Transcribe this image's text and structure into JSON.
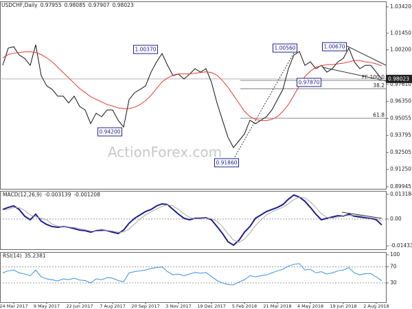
{
  "chart_data": [
    {
      "type": "line",
      "title": "USDCHF,Daily",
      "ohlc": [
        0.97955,
        0.98085,
        0.97907,
        0.98023
      ],
      "watermark": "ActionForex.com",
      "series": [
        {
          "color": "#111111",
          "values": [
            0.9904,
            1.0033,
            1.0043,
            0.9981,
            0.9956,
            0.9904,
            1.0058,
            0.9827,
            0.975,
            0.9724,
            0.9673,
            0.9673,
            0.9622,
            0.9673,
            0.9596,
            0.957,
            0.9467,
            0.9545,
            0.9519,
            0.957,
            0.957,
            0.9493,
            0.9442,
            0.9647,
            0.9699,
            0.9724,
            0.975,
            0.9853,
            0.993,
            0.9992,
            0.9904,
            0.9827,
            0.9838,
            0.9802,
            0.9838,
            0.9879,
            0.9853,
            0.9879,
            0.9776,
            0.9622,
            0.9493,
            0.9365,
            0.9288,
            0.9339,
            0.939,
            0.9493,
            0.9467,
            0.9493,
            0.9519,
            0.957,
            0.9647,
            0.9724,
            0.9879,
            0.9981,
            1.0007,
            0.9904,
            0.993,
            0.9879,
            0.9904,
            0.9853,
            0.9879,
            0.993,
            0.9956,
            1.0033,
            0.993,
            0.9879,
            0.9904,
            0.9904,
            0.9853,
            0.9802
          ]
        },
        {
          "color": "#e53b2c",
          "values": [
            0.996,
            0.9985,
            0.9995,
            1.0,
            1.0005,
            1.0005,
            1.0,
            0.9985,
            0.996,
            0.993,
            0.989,
            0.985,
            0.981,
            0.977,
            0.973,
            0.97,
            0.967,
            0.965,
            0.963,
            0.961,
            0.96,
            0.9585,
            0.958,
            0.958,
            0.959,
            0.961,
            0.964,
            0.968,
            0.973,
            0.978,
            0.981,
            0.983,
            0.984,
            0.984,
            0.984,
            0.9845,
            0.985,
            0.9855,
            0.985,
            0.983,
            0.979,
            0.974,
            0.968,
            0.962,
            0.956,
            0.952,
            0.95,
            0.949,
            0.949,
            0.95,
            0.952,
            0.956,
            0.961,
            0.968,
            0.975,
            0.982,
            0.986,
            0.989,
            0.99,
            0.991,
            0.991,
            0.9915,
            0.992,
            0.993,
            0.994,
            0.994,
            0.993,
            0.9925,
            0.9915,
            0.99
          ]
        }
      ],
      "ylim": [
        0.8979,
        1.0383
      ],
      "yticks": [
        {
          "value": 1.0342,
          "label": "1.03420"
        },
        {
          "value": 1.0145,
          "label": "1.01450"
        },
        {
          "value": 1.002,
          "label": "1.00200"
        },
        {
          "value": 0.9761,
          "label": "0.97610"
        },
        {
          "value": 0.9635,
          "label": "0.96350"
        },
        0.95055,
        0.93795,
        0.92505,
        {
          "value": 0.9125,
          "label": "0.91250"
        },
        0.89945
      ],
      "annotations": [
        "1.00370",
        "0.94200",
        "0.91860",
        "1.00560",
        "1.00670",
        "0.97870"
      ],
      "fib_levels": [
        {
          "label": "FE 100.0",
          "value": 0.9791
        },
        {
          "label": "38.2",
          "value": 0.9729
        },
        {
          "label": "61.8",
          "value": 0.9508
        }
      ]
    },
    {
      "type": "line",
      "title": "MACD(12,26,9)",
      "series": [
        {
          "color": "#1c1c8c",
          "values": [
            0.0051,
            0.0062,
            0.007,
            0.0051,
            0.0015,
            -0.0004,
            0.0026,
            -0.0011,
            -0.0029,
            -0.004,
            -0.0044,
            -0.004,
            -0.0044,
            -0.0051,
            -0.0059,
            -0.0062,
            -0.007,
            -0.0062,
            -0.0059,
            -0.0062,
            -0.007,
            -0.0077,
            -0.0059,
            -0.0022,
            0.0004,
            0.0022,
            0.004,
            0.0051,
            0.007,
            0.0081,
            0.0077,
            0.0051,
            0.0026,
            0.0004,
            -0.0004,
            0.0004,
            0.0004,
            0.0007,
            -0.0004,
            -0.004,
            -0.0077,
            -0.0121,
            -0.0139,
            -0.0113,
            -0.007,
            -0.004,
            0.0004,
            0.0022,
            0.004,
            0.0051,
            0.0062,
            0.0077,
            0.0106,
            0.0128,
            0.0117,
            0.0095,
            0.0062,
            0.0026,
            -0.0004,
            0.0004,
            0.0011,
            0.0018,
            0.0015,
            0.0026,
            0.0015,
            0.0011,
            0.0007,
            0.0004,
            -0.0004,
            -0.003139
          ]
        },
        {
          "color": "#a8a8a8",
          "values": [
            0.0048,
            0.0052,
            0.0061,
            0.0061,
            0.0045,
            0.0021,
            0.0012,
            0.0004,
            -0.0005,
            -0.0027,
            -0.0038,
            -0.0041,
            -0.0043,
            -0.0045,
            -0.0051,
            -0.0057,
            -0.0064,
            -0.0065,
            -0.0064,
            -0.0061,
            -0.0064,
            -0.007,
            -0.0069,
            -0.0053,
            -0.0026,
            0.0001,
            0.0022,
            0.0038,
            0.0054,
            0.0067,
            0.0076,
            0.007,
            0.0051,
            0.0027,
            0.0009,
            0.0001,
            0.0001,
            0.0005,
            0.0002,
            -0.0012,
            -0.004,
            -0.0079,
            -0.0112,
            -0.0124,
            -0.0107,
            -0.0074,
            -0.0035,
            -0.0005,
            0.0022,
            0.0038,
            0.0051,
            0.0063,
            0.0082,
            0.0104,
            0.0117,
            0.0113,
            0.0091,
            0.0061,
            0.0028,
            0.0009,
            0.0004,
            0.0011,
            0.0015,
            0.002,
            0.0019,
            0.0017,
            0.0011,
            0.0007,
            0.0002,
            -0.001208
          ]
        }
      ],
      "ylim": [
        -0.0161,
        0.015
      ],
      "yticks": [
        0.013184,
        {
          "value": 0,
          "label": "0.00"
        },
        -0.014339
      ],
      "ref_lines": [
        0
      ]
    },
    {
      "type": "line",
      "title": "RSI(14)",
      "series": [
        {
          "color": "#3b8fe0",
          "values": [
            55,
            60,
            62,
            55,
            52,
            48,
            62,
            45,
            40,
            38,
            35,
            40,
            38,
            42,
            37,
            36,
            30,
            40,
            38,
            43,
            42,
            36,
            33,
            55,
            58,
            60,
            62,
            66,
            68,
            70,
            58,
            50,
            52,
            48,
            52,
            56,
            54,
            56,
            46,
            36,
            30,
            26,
            25,
            32,
            38,
            48,
            45,
            48,
            50,
            55,
            60,
            64,
            72,
            76,
            78,
            62,
            64,
            55,
            58,
            52,
            55,
            60,
            62,
            68,
            55,
            50,
            53,
            53,
            45,
            35.2381
          ]
        }
      ],
      "ylim": [
        -17.7,
        106.8
      ],
      "yticks": [
        100,
        70,
        30
      ],
      "ref_lines": [
        70,
        30
      ],
      "categories": [
        null,
        null,
        "24 Mar 2017",
        null,
        null,
        null,
        null,
        null,
        "9 May 2017",
        null,
        null,
        null,
        null,
        null,
        "22 Jun 2017",
        null,
        null,
        null,
        null,
        null,
        "7 Aug 2017",
        null,
        null,
        null,
        null,
        null,
        "20 Sep 2017",
        null,
        null,
        null,
        null,
        null,
        "3 Nov 2017",
        null,
        null,
        null,
        null,
        null,
        "19 Dec 2017",
        null,
        null,
        null,
        null,
        null,
        "5 Feb 2018",
        null,
        null,
        null,
        null,
        null,
        "21 Mar 2018",
        null,
        null,
        null,
        null,
        null,
        "4 May 2018",
        null,
        null,
        null,
        null,
        null,
        "19 Jun 2018",
        null,
        null,
        null,
        null,
        null,
        "2 Aug 2018",
        null
      ]
    }
  ]
}
